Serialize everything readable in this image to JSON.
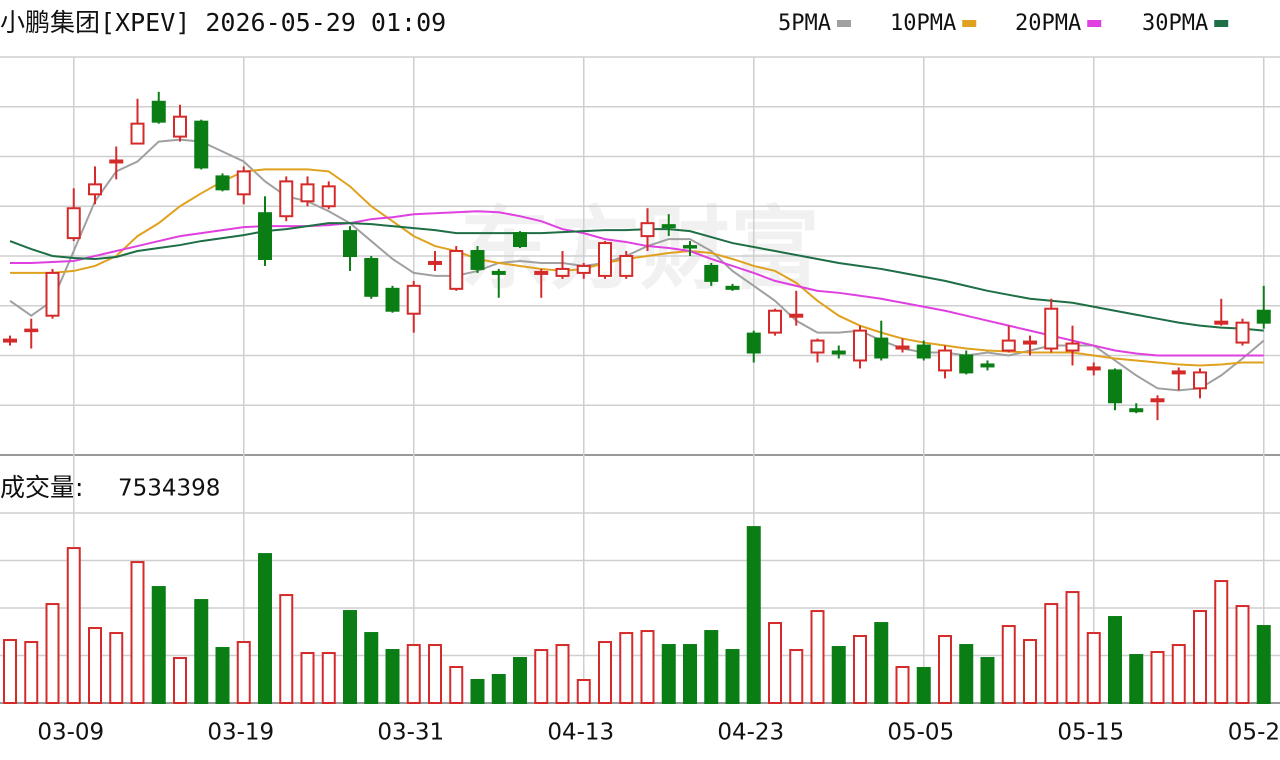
{
  "chart_data": [
    {
      "type": "candlestick",
      "title": "小鹏集团[XPEV] 2026-05-29 01:09",
      "watermark": "东方财富",
      "categories": [
        null,
        null,
        null,
        "03-09",
        null,
        null,
        null,
        null,
        null,
        null,
        null,
        "03-19",
        null,
        null,
        null,
        null,
        null,
        null,
        null,
        "03-31",
        null,
        null,
        null,
        null,
        null,
        null,
        null,
        "04-13",
        null,
        null,
        null,
        null,
        null,
        null,
        null,
        "04-23",
        null,
        null,
        null,
        null,
        null,
        null,
        null,
        "05-05",
        null,
        null,
        null,
        null,
        null,
        null,
        null,
        "05-15",
        null,
        null,
        null,
        null,
        null,
        null,
        null,
        "05-2"
      ],
      "open": [
        2.28,
        2.5,
        2.8,
        4.36,
        5.24,
        5.88,
        6.26,
        7.1,
        6.4,
        6.7,
        5.6,
        5.24,
        4.86,
        4.8,
        5.1,
        5.0,
        4.5,
        3.94,
        3.34,
        2.84,
        3.84,
        3.34,
        4.1,
        3.68,
        4.46,
        3.64,
        3.6,
        3.66,
        3.6,
        3.6,
        4.4,
        4.62,
        4.2,
        3.8,
        3.38,
        2.44,
        2.46,
        2.78,
        2.06,
        2.08,
        1.9,
        2.34,
        2.14,
        2.2,
        1.7,
        2.0,
        1.82,
        2.1,
        2.24,
        2.14,
        2.1,
        1.72,
        1.7,
        0.92,
        1.08,
        1.64,
        1.34,
        2.64,
        2.26,
        2.9
      ],
      "high": [
        2.4,
        2.74,
        3.74,
        5.36,
        5.8,
        6.2,
        7.16,
        7.3,
        7.04,
        6.74,
        5.66,
        5.8,
        5.2,
        5.6,
        5.6,
        5.5,
        4.6,
        4.0,
        3.4,
        3.5,
        4.1,
        4.2,
        4.2,
        3.74,
        4.5,
        3.74,
        4.1,
        3.86,
        4.3,
        4.1,
        4.96,
        4.84,
        4.3,
        3.86,
        3.44,
        2.5,
        2.94,
        3.3,
        2.34,
        2.2,
        2.6,
        2.7,
        2.34,
        2.3,
        2.2,
        2.1,
        1.9,
        2.6,
        2.4,
        3.14,
        2.6,
        1.86,
        1.74,
        1.04,
        1.2,
        1.76,
        1.74,
        3.14,
        2.74,
        3.4
      ],
      "low": [
        2.2,
        2.14,
        2.74,
        4.3,
        5.04,
        5.54,
        6.26,
        6.66,
        6.3,
        5.74,
        5.3,
        5.04,
        3.8,
        4.7,
        5.0,
        4.94,
        3.7,
        3.14,
        2.86,
        2.46,
        3.7,
        3.3,
        3.66,
        3.16,
        4.16,
        3.16,
        3.54,
        3.54,
        3.54,
        3.54,
        4.1,
        4.4,
        4.0,
        3.4,
        3.3,
        1.86,
        2.4,
        2.6,
        1.86,
        1.94,
        1.74,
        1.9,
        2.06,
        1.9,
        1.54,
        1.62,
        1.7,
        2.06,
        2.0,
        2.06,
        1.8,
        1.6,
        0.9,
        0.84,
        0.7,
        1.3,
        1.14,
        2.6,
        2.2,
        2.54
      ],
      "close": [
        2.32,
        2.52,
        3.66,
        4.96,
        5.44,
        5.92,
        6.66,
        6.7,
        6.8,
        5.78,
        5.34,
        5.7,
        3.94,
        5.5,
        5.44,
        5.4,
        4.0,
        3.2,
        2.9,
        3.4,
        3.88,
        4.1,
        3.74,
        3.64,
        4.2,
        3.68,
        3.74,
        3.8,
        4.26,
        4.0,
        4.66,
        4.58,
        4.18,
        3.5,
        3.34,
        2.06,
        2.9,
        2.82,
        2.3,
        2.04,
        2.5,
        1.96,
        2.18,
        1.96,
        2.1,
        1.66,
        1.78,
        2.3,
        2.28,
        2.94,
        2.24,
        1.76,
        1.06,
        0.88,
        1.12,
        1.68,
        1.66,
        2.68,
        2.66,
        2.66
      ],
      "up_color": "#d42a2a",
      "down_color": "#0a7d14",
      "series": [
        {
          "name": "5PMA",
          "color": "#a0a0a0",
          "values": [
            3.1,
            2.8,
            3.1,
            4.1,
            5.1,
            5.7,
            5.9,
            6.3,
            6.34,
            6.3,
            6.1,
            5.9,
            5.5,
            5.2,
            5.1,
            4.9,
            4.66,
            4.3,
            3.94,
            3.66,
            3.6,
            3.6,
            3.7,
            3.86,
            3.9,
            3.86,
            3.86,
            3.8,
            3.86,
            4.0,
            4.2,
            4.34,
            4.34,
            4.1,
            3.7,
            3.4,
            3.1,
            2.7,
            2.46,
            2.46,
            2.5,
            2.3,
            2.14,
            2.06,
            2.06,
            2.0,
            2.06,
            2.0,
            2.1,
            2.2,
            2.2,
            2.2,
            1.9,
            1.6,
            1.34,
            1.3,
            1.34,
            1.6,
            1.94,
            2.3
          ]
        },
        {
          "name": "10PMA",
          "color": "#e0a21e",
          "values": [
            3.66,
            3.66,
            3.66,
            3.7,
            3.8,
            4.0,
            4.4,
            4.66,
            5.0,
            5.26,
            5.5,
            5.7,
            5.74,
            5.74,
            5.74,
            5.7,
            5.4,
            5.0,
            4.7,
            4.4,
            4.2,
            4.1,
            3.94,
            3.86,
            3.8,
            3.74,
            3.7,
            3.74,
            3.86,
            3.94,
            4.0,
            4.06,
            4.1,
            4.06,
            3.94,
            3.8,
            3.7,
            3.46,
            3.1,
            2.8,
            2.6,
            2.46,
            2.34,
            2.26,
            2.2,
            2.14,
            2.1,
            2.08,
            2.06,
            2.06,
            2.06,
            2.0,
            1.94,
            1.9,
            1.86,
            1.82,
            1.8,
            1.82,
            1.86,
            1.86
          ]
        },
        {
          "name": "20PMA",
          "color": "#e040e0",
          "values": [
            3.86,
            3.86,
            3.88,
            3.9,
            4.0,
            4.1,
            4.2,
            4.3,
            4.4,
            4.46,
            4.52,
            4.58,
            4.6,
            4.6,
            4.6,
            4.62,
            4.66,
            4.74,
            4.78,
            4.84,
            4.86,
            4.88,
            4.9,
            4.88,
            4.8,
            4.7,
            4.54,
            4.46,
            4.34,
            4.28,
            4.2,
            4.16,
            4.1,
            3.94,
            3.8,
            3.66,
            3.5,
            3.4,
            3.3,
            3.26,
            3.2,
            3.14,
            3.06,
            2.98,
            2.9,
            2.8,
            2.7,
            2.6,
            2.5,
            2.4,
            2.3,
            2.2,
            2.1,
            2.04,
            2.0,
            2.0,
            2.0,
            2.0,
            2.0,
            2.0
          ]
        },
        {
          "name": "30PMA",
          "color": "#1e6e46",
          "values": [
            4.3,
            4.14,
            4.0,
            3.96,
            3.94,
            3.98,
            4.1,
            4.16,
            4.22,
            4.3,
            4.36,
            4.42,
            4.5,
            4.54,
            4.6,
            4.66,
            4.66,
            4.64,
            4.6,
            4.56,
            4.52,
            4.46,
            4.46,
            4.46,
            4.46,
            4.46,
            4.48,
            4.5,
            4.52,
            4.52,
            4.54,
            4.54,
            4.5,
            4.38,
            4.26,
            4.18,
            4.1,
            4.02,
            3.94,
            3.86,
            3.8,
            3.74,
            3.66,
            3.58,
            3.5,
            3.4,
            3.3,
            3.22,
            3.14,
            3.1,
            3.06,
            2.98,
            2.9,
            2.82,
            2.74,
            2.66,
            2.6,
            2.56,
            2.54,
            2.5
          ]
        }
      ],
      "ylim": [
        0,
        8
      ],
      "yticks": [
        1,
        2,
        3,
        4,
        5,
        6,
        7,
        8
      ],
      "grid": true
    },
    {
      "type": "bar",
      "title": "成交量:",
      "values": [
        6165000,
        5969000,
        9687000,
        15167000,
        7339000,
        6849000,
        13797000,
        11350000,
        4403000,
        10078000,
        5382000,
        5969000,
        14580000,
        10568000,
        4892000,
        4892000,
        9002000,
        6849000,
        5186000,
        5675000,
        5675000,
        3523000,
        2251000,
        2740000,
        4403000,
        5186000,
        5675000,
        2251000,
        5969000,
        6849000,
        7045000,
        5675000,
        5675000,
        7045000,
        5186000,
        17221000,
        7828000,
        5186000,
        9002000,
        5480000,
        6556000,
        7828000,
        3523000,
        3425000,
        6556000,
        5675000,
        4403000,
        7534000,
        6165000,
        9687000,
        10861000,
        6849000,
        8415000,
        4697000,
        4990000,
        5675000,
        9002000,
        11938000,
        9491000,
        7534398
      ],
      "ylim": [
        0,
        18600000
      ],
      "yticks": [
        4650000,
        9300000,
        13950000,
        18600000
      ],
      "grid": true
    }
  ]
}
